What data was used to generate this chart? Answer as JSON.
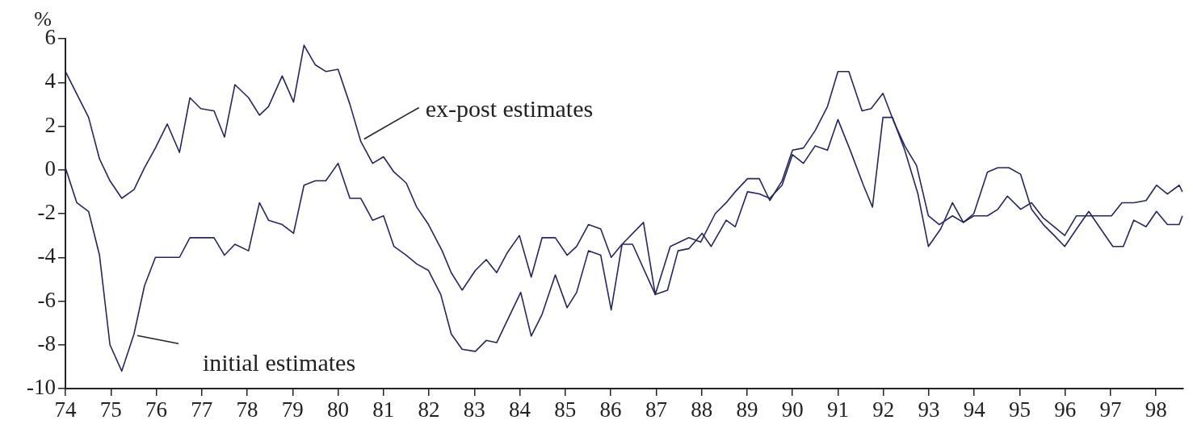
{
  "chart_data": {
    "type": "line",
    "ylabel": "%",
    "xlim": [
      74,
      98.6
    ],
    "xticks": [
      74,
      75,
      76,
      77,
      78,
      79,
      80,
      81,
      82,
      83,
      84,
      85,
      86,
      87,
      88,
      89,
      90,
      91,
      92,
      93,
      94,
      95,
      96,
      97,
      98
    ],
    "ylim": [
      -10,
      6
    ],
    "yticks": [
      -10,
      -8,
      -6,
      -4,
      -2,
      0,
      2,
      4,
      6
    ],
    "grid": false,
    "legend": false,
    "marker": "none",
    "line_style": "solid",
    "series": [
      {
        "name": "ex-post estimates",
        "color": "#26265e",
        "x": [
          74,
          74.51,
          74.75,
          74.98,
          75.24,
          75.51,
          75.74,
          75.98,
          76.24,
          76.51,
          76.74,
          76.98,
          77.27,
          77.5,
          77.73,
          78.03,
          78.27,
          78.47,
          78.77,
          79.02,
          79.25,
          79.5,
          79.73,
          80.0,
          80.26,
          80.5,
          80.76,
          81.0,
          81.23,
          81.5,
          81.73,
          81.99,
          82.29,
          82.49,
          82.73,
          83.02,
          83.26,
          83.49,
          83.72,
          83.99,
          84.25,
          84.49,
          84.78,
          85.04,
          85.25,
          85.51,
          85.78,
          86.01,
          86.25,
          86.72,
          86.98,
          87.31,
          87.72,
          87.98,
          88.3,
          88.54,
          88.74,
          89.01,
          89.27,
          89.5,
          89.77,
          90.0,
          90.24,
          90.5,
          90.77,
          91.0,
          91.24,
          91.53,
          91.73,
          91.99,
          92.23,
          92.47,
          92.73,
          92.99,
          93.23,
          93.52,
          93.76,
          93.99,
          94.29,
          94.52,
          94.73,
          95.02,
          95.26,
          95.52,
          95.76,
          95.99,
          96.25,
          96.52,
          96.75,
          97.02,
          97.25,
          97.51,
          97.78,
          98.01,
          98.25,
          98.51,
          98.58
        ],
        "values": [
          4.5,
          2.4,
          0.5,
          -0.5,
          -1.3,
          -0.9,
          0.1,
          1.0,
          2.1,
          0.8,
          3.3,
          2.8,
          2.7,
          1.5,
          3.9,
          3.3,
          2.5,
          2.9,
          4.3,
          3.1,
          5.7,
          4.8,
          4.5,
          4.6,
          3.0,
          1.3,
          0.3,
          0.6,
          -0.1,
          -0.6,
          -1.7,
          -2.5,
          -3.7,
          -4.7,
          -5.5,
          -4.6,
          -4.1,
          -4.7,
          -3.8,
          -3.0,
          -4.9,
          -3.1,
          -3.1,
          -3.9,
          -3.5,
          -2.5,
          -2.7,
          -4.0,
          -3.4,
          -2.4,
          -5.7,
          -3.5,
          -3.1,
          -3.3,
          -2.0,
          -1.5,
          -1.0,
          -0.4,
          -0.4,
          -1.4,
          -0.5,
          0.9,
          1.0,
          1.8,
          2.9,
          4.5,
          4.5,
          2.7,
          2.8,
          3.5,
          2.2,
          1.1,
          0.2,
          -2.1,
          -2.5,
          -2.1,
          -2.4,
          -2.1,
          -2.1,
          -1.8,
          -1.2,
          -1.8,
          -1.5,
          -2.2,
          -2.6,
          -3.0,
          -2.1,
          -2.1,
          -2.1,
          -2.1,
          -1.5,
          -1.5,
          -1.4,
          -0.7,
          -1.1,
          -0.7,
          -1.0
        ]
      },
      {
        "name": "initial estimates",
        "color": "#26265e",
        "x": [
          74,
          74.25,
          74.51,
          74.75,
          74.98,
          75.24,
          75.51,
          75.74,
          75.98,
          76.24,
          76.51,
          76.74,
          76.98,
          77.27,
          77.5,
          77.73,
          78.03,
          78.27,
          78.47,
          78.77,
          79.02,
          79.25,
          79.5,
          79.73,
          80.0,
          80.26,
          80.5,
          80.76,
          81.0,
          81.23,
          81.5,
          81.73,
          81.99,
          82.26,
          82.49,
          82.73,
          83.02,
          83.26,
          83.49,
          83.72,
          84.02,
          84.25,
          84.49,
          84.78,
          85.04,
          85.25,
          85.51,
          85.78,
          86.01,
          86.25,
          86.48,
          86.98,
          87.25,
          87.48,
          87.72,
          88.01,
          88.21,
          88.54,
          88.74,
          89.01,
          89.27,
          89.5,
          89.77,
          90.0,
          90.24,
          90.5,
          90.77,
          91.0,
          91.27,
          91.56,
          91.76,
          91.99,
          92.2,
          92.47,
          92.76,
          92.99,
          93.26,
          93.52,
          93.76,
          93.99,
          94.29,
          94.52,
          94.76,
          95.02,
          95.26,
          95.52,
          95.76,
          95.99,
          96.25,
          96.52,
          96.75,
          97.05,
          97.28,
          97.51,
          97.78,
          98.01,
          98.25,
          98.51,
          98.58
        ],
        "values": [
          0.1,
          -1.5,
          -1.9,
          -3.9,
          -8.0,
          -9.2,
          -7.5,
          -5.3,
          -4.0,
          -4.0,
          -4.0,
          -3.1,
          -3.1,
          -3.1,
          -3.9,
          -3.4,
          -3.7,
          -1.5,
          -2.3,
          -2.5,
          -2.9,
          -0.7,
          -0.5,
          -0.5,
          0.3,
          -1.3,
          -1.3,
          -2.3,
          -2.1,
          -3.5,
          -3.9,
          -4.3,
          -4.6,
          -5.7,
          -7.5,
          -8.2,
          -8.3,
          -7.8,
          -7.9,
          -6.9,
          -5.6,
          -7.6,
          -6.6,
          -4.8,
          -6.3,
          -5.6,
          -3.7,
          -3.9,
          -6.4,
          -3.4,
          -3.4,
          -5.7,
          -5.5,
          -3.7,
          -3.6,
          -2.9,
          -3.5,
          -2.3,
          -2.6,
          -1.0,
          -1.1,
          -1.3,
          -0.7,
          0.7,
          0.3,
          1.1,
          0.9,
          2.3,
          0.9,
          -0.7,
          -1.7,
          2.4,
          2.4,
          0.9,
          -1.1,
          -3.5,
          -2.7,
          -1.5,
          -2.4,
          -2.0,
          -0.1,
          0.1,
          0.1,
          -0.2,
          -1.8,
          -2.5,
          -3.0,
          -3.5,
          -2.7,
          -1.9,
          -2.6,
          -3.5,
          -3.5,
          -2.3,
          -2.6,
          -1.9,
          -2.5,
          -2.5,
          -2.1
        ]
      }
    ]
  }
}
